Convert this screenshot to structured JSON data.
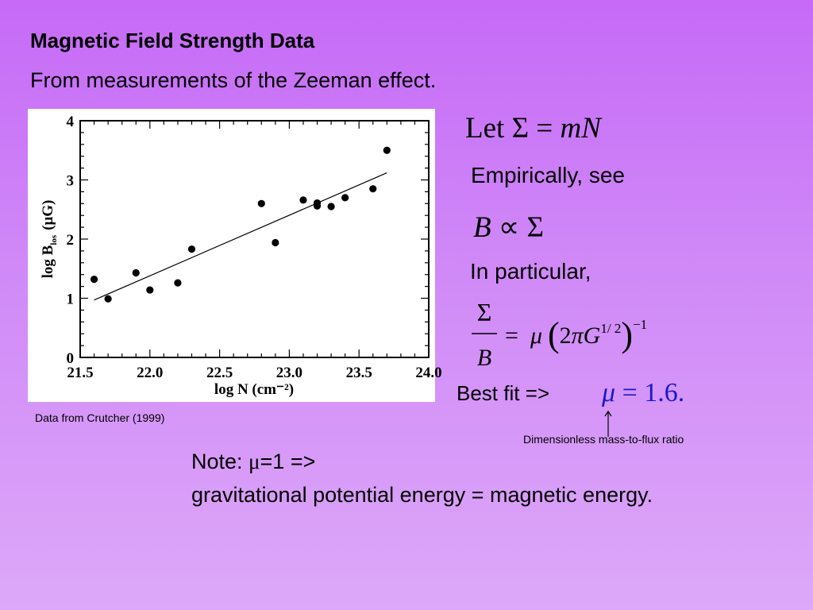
{
  "slide": {
    "title": "Magnetic Field Strength Data",
    "subtitle": "From measurements of the Zeeman effect.",
    "caption": "Data from Crutcher (1999)",
    "eq_let_word": "Let",
    "eq_let_rhs": "mN",
    "empirically": "Empirically, see",
    "eq_prop_B": "B",
    "in_particular": "In particular,",
    "eq_frac_num": "Σ",
    "eq_frac_den": "B",
    "best_fit": "Best fit =>",
    "eq_mu_value": "1.6.",
    "dimensionless": "Dimensionless mass-to-flux ratio",
    "note_line1_prefix": "Note: ",
    "note_line1_mu": "μ",
    "note_line1_suffix": "=1 =>",
    "note_line2": "gravitational potential energy = magnetic energy."
  },
  "colors": {
    "background_top": "#c66af7",
    "background_bottom": "#dda8f9",
    "mu_fit": "#1a1ac8"
  },
  "icons": {
    "arrow": "up-arrow-icon"
  },
  "chart_data": {
    "type": "scatter",
    "xlabel": "log N (cm⁻²)",
    "ylabel_main": "log B",
    "ylabel_sub": "los",
    "ylabel_unit": "(μG)",
    "xlim": [
      21.5,
      24.0
    ],
    "ylim": [
      0,
      4
    ],
    "x_ticks": [
      "21.5",
      "22.0",
      "22.5",
      "23.0",
      "23.5",
      "24.0"
    ],
    "y_ticks": [
      "0",
      "1",
      "2",
      "3",
      "4"
    ],
    "points": [
      {
        "x": 21.6,
        "y": 1.32
      },
      {
        "x": 21.7,
        "y": 0.99
      },
      {
        "x": 21.9,
        "y": 1.43
      },
      {
        "x": 22.0,
        "y": 1.14
      },
      {
        "x": 22.2,
        "y": 1.26
      },
      {
        "x": 22.3,
        "y": 1.83
      },
      {
        "x": 22.8,
        "y": 2.6
      },
      {
        "x": 22.9,
        "y": 1.94
      },
      {
        "x": 23.1,
        "y": 2.66
      },
      {
        "x": 23.2,
        "y": 2.61
      },
      {
        "x": 23.2,
        "y": 2.56
      },
      {
        "x": 23.3,
        "y": 2.55
      },
      {
        "x": 23.4,
        "y": 2.7
      },
      {
        "x": 23.6,
        "y": 2.85
      },
      {
        "x": 23.7,
        "y": 3.5
      }
    ],
    "fit_line": {
      "x1": 21.6,
      "y1": 0.97,
      "x2": 23.7,
      "y2": 3.12
    },
    "grid": false,
    "legend": "none"
  }
}
